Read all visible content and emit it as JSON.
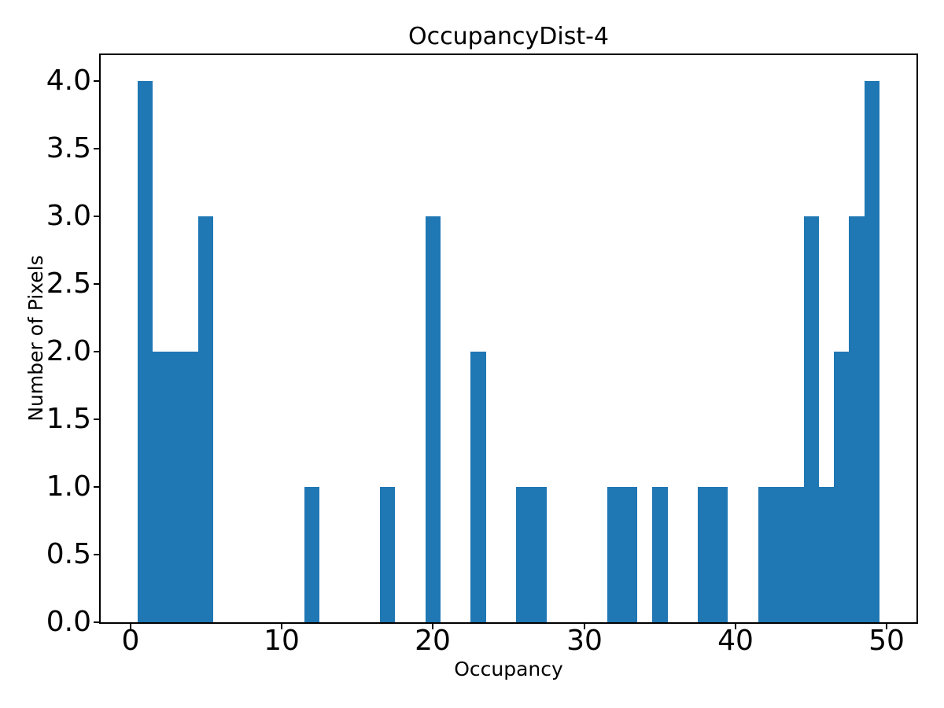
{
  "figure": {
    "background_color": "#ffffff"
  },
  "chart_data": {
    "type": "bar",
    "subtype": "histogram",
    "title": "OccupancyDist-4",
    "xlabel": "Occupancy",
    "ylabel": "Number of Pixels",
    "bar_color": "#1f77b4",
    "axis_color": "#000000",
    "text_color": "#000000",
    "grid": false,
    "legend": "none",
    "xlim": [
      -1.95,
      51.95
    ],
    "ylim": [
      0,
      4.19
    ],
    "bin_width": 1,
    "xticks": {
      "values": [
        0,
        10,
        20,
        30,
        40,
        50
      ],
      "labels": [
        "0",
        "10",
        "20",
        "30",
        "40",
        "50"
      ]
    },
    "yticks": {
      "values": [
        0,
        0.5,
        1,
        1.5,
        2,
        2.5,
        3,
        3.5,
        4
      ],
      "labels": [
        "0.0",
        "0.5",
        "1.0",
        "1.5",
        "2.0",
        "2.5",
        "3.0",
        "3.5",
        "4.0"
      ]
    },
    "bins": [
      {
        "center": 1,
        "count": 4
      },
      {
        "center": 2,
        "count": 2
      },
      {
        "center": 3,
        "count": 2
      },
      {
        "center": 4,
        "count": 2
      },
      {
        "center": 5,
        "count": 3
      },
      {
        "center": 12,
        "count": 1
      },
      {
        "center": 17,
        "count": 1
      },
      {
        "center": 20,
        "count": 3
      },
      {
        "center": 23,
        "count": 2
      },
      {
        "center": 26,
        "count": 1
      },
      {
        "center": 27,
        "count": 1
      },
      {
        "center": 32,
        "count": 1
      },
      {
        "center": 33,
        "count": 1
      },
      {
        "center": 35,
        "count": 1
      },
      {
        "center": 38,
        "count": 1
      },
      {
        "center": 39,
        "count": 1
      },
      {
        "center": 42,
        "count": 1
      },
      {
        "center": 43,
        "count": 1
      },
      {
        "center": 44,
        "count": 1
      },
      {
        "center": 45,
        "count": 3
      },
      {
        "center": 46,
        "count": 1
      },
      {
        "center": 47,
        "count": 2
      },
      {
        "center": 48,
        "count": 3
      },
      {
        "center": 49,
        "count": 4
      }
    ]
  }
}
